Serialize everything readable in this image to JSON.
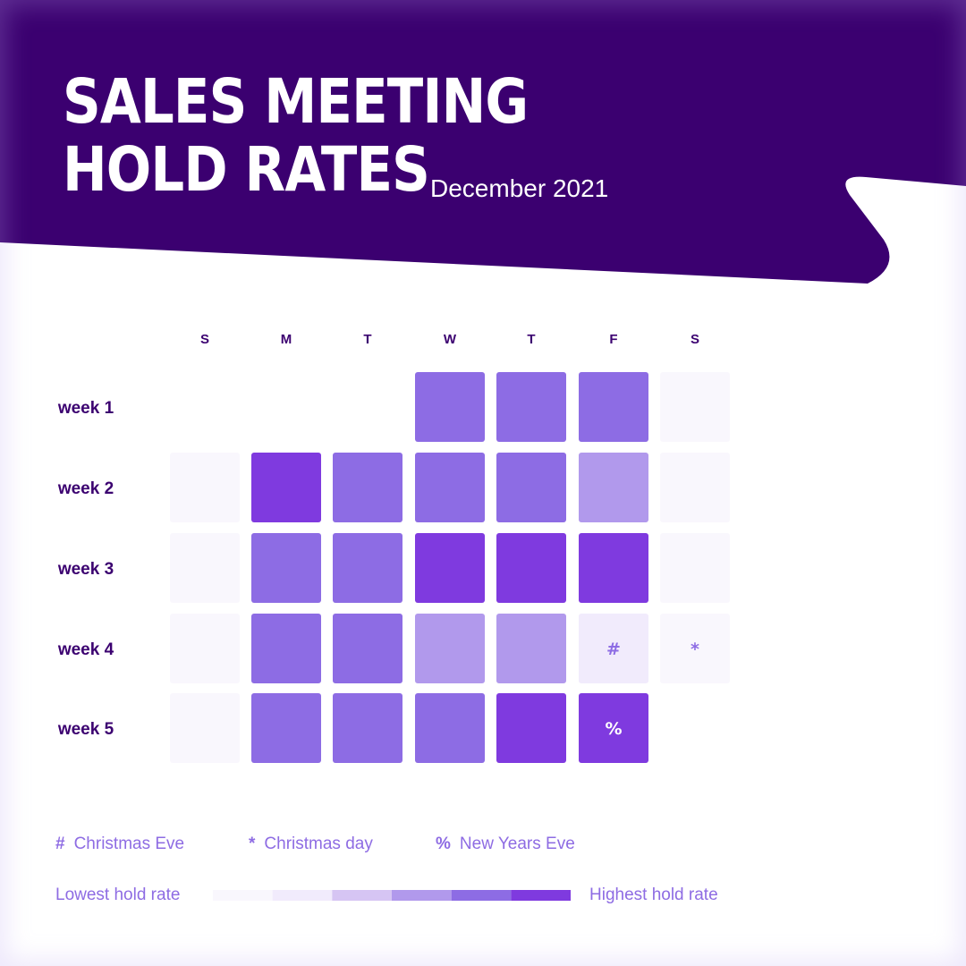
{
  "header": {
    "title_lines": [
      "SALES MEETING",
      "HOLD RATES"
    ],
    "subtitle": "December 2021"
  },
  "colors": {
    "header_bg": "#3b0070",
    "level_0": "#f9f7fd",
    "level_1": "#f1ebfc",
    "level_2": "#d6c5f3",
    "level_3": "#b199ec",
    "level_4": "#8d6ce4",
    "level_5": "#7f3adf",
    "day_label": "#3b0070",
    "week_label": "#3b0070",
    "legend_text": "#8e6ce3"
  },
  "chart_data": {
    "type": "heatmap",
    "title": "SALES MEETING HOLD RATES",
    "subtitle": "December 2021",
    "columns": [
      "S",
      "M",
      "T",
      "W",
      "T",
      "F",
      "S"
    ],
    "rows": [
      "week 1",
      "week 2",
      "week 3",
      "week 4",
      "week 5"
    ],
    "levels": [
      [
        null,
        null,
        null,
        4,
        4,
        4,
        0
      ],
      [
        0,
        5,
        4,
        4,
        4,
        3,
        0
      ],
      [
        0,
        4,
        4,
        5,
        5,
        5,
        0
      ],
      [
        0,
        4,
        4,
        3,
        3,
        1,
        0
      ],
      [
        0,
        4,
        4,
        4,
        5,
        5,
        null
      ]
    ],
    "markers": [
      {
        "row": 3,
        "col": 5,
        "symbol": "#"
      },
      {
        "row": 3,
        "col": 6,
        "symbol": "*"
      },
      {
        "row": 4,
        "col": 5,
        "symbol": "%"
      }
    ],
    "scale": {
      "low_label": "Lowest hold rate",
      "high_label": "Highest hold rate",
      "steps": 6
    }
  },
  "legend": {
    "items": [
      {
        "symbol": "#",
        "label": "Christmas Eve"
      },
      {
        "symbol": "*",
        "label": "Christmas day"
      },
      {
        "symbol": "%",
        "label": "New Years Eve"
      }
    ]
  }
}
